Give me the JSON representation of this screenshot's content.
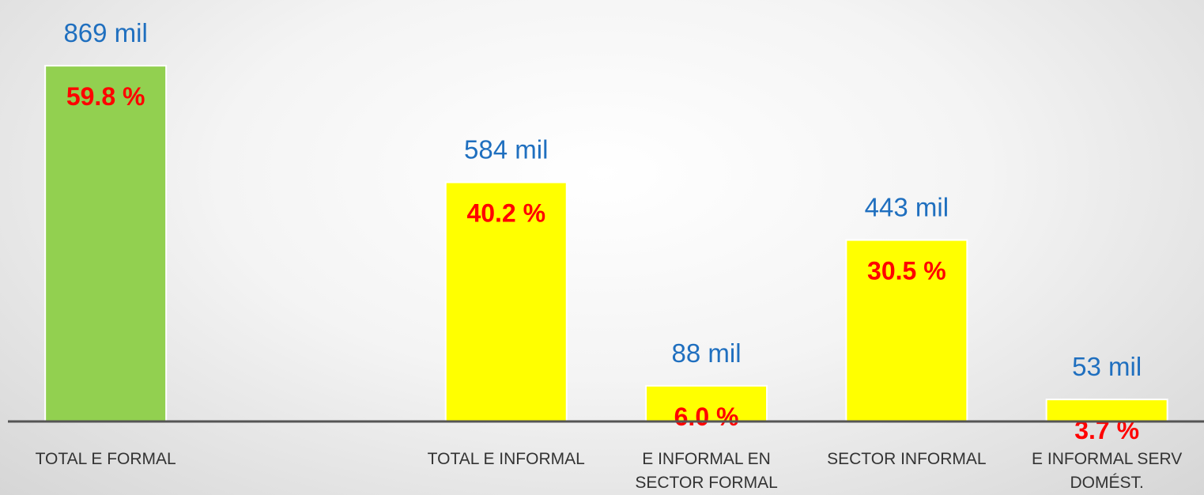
{
  "chart_data": {
    "type": "bar",
    "categories": [
      "TOTAL E FORMAL",
      null,
      "TOTAL E INFORMAL",
      "E INFORMAL EN SECTOR FORMAL",
      "SECTOR INFORMAL",
      "E INFORMAL SERV DOMÉST."
    ],
    "values": [
      59.8,
      null,
      40.2,
      6.0,
      30.5,
      3.7
    ],
    "value_labels": [
      "59.8 %",
      null,
      "40.2 %",
      "6.0 %",
      "30.5 %",
      "3.7 %"
    ],
    "totals": [
      869,
      null,
      584,
      88,
      443,
      53
    ],
    "total_labels": [
      "869 mil",
      null,
      "584 mil",
      "88 mil",
      "443 mil",
      "53 mil"
    ],
    "colors": [
      "#92d050",
      null,
      "#ffff00",
      "#ffff00",
      "#ffff00",
      "#ffff00"
    ],
    "ylim": [
      0,
      65
    ]
  }
}
